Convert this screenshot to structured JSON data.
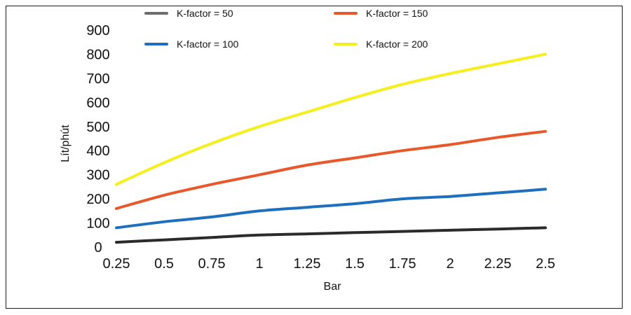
{
  "chart_data": {
    "type": "line",
    "title": "",
    "xlabel": "Bar",
    "ylabel": "Lít/phút",
    "x": [
      0.25,
      0.5,
      0.75,
      1,
      1.25,
      1.5,
      1.75,
      2,
      2.25,
      2.5
    ],
    "x_tick_labels": [
      "0.25",
      "0.5",
      "0.75",
      "1",
      "1.25",
      "1.5",
      "1.75",
      "2",
      "2.25",
      "2.5"
    ],
    "ylim": [
      0,
      900
    ],
    "y_ticks": [
      0,
      100,
      200,
      300,
      400,
      500,
      600,
      700,
      800,
      900
    ],
    "grid": false,
    "legend_position": "top",
    "series": [
      {
        "name": "K-factor = 50",
        "color": "#2b2b2b",
        "legend_color": "#6e6e6e",
        "values": [
          20,
          30,
          40,
          50,
          55,
          60,
          65,
          70,
          75,
          80
        ]
      },
      {
        "name": "K-factor = 100",
        "color": "#1f6fbf",
        "legend_color": "#1f6fbf",
        "values": [
          80,
          105,
          125,
          150,
          165,
          180,
          200,
          210,
          225,
          240
        ]
      },
      {
        "name": "K-factor = 150",
        "color": "#e8582a",
        "legend_color": "#e8582a",
        "values": [
          160,
          215,
          260,
          300,
          340,
          370,
          400,
          425,
          455,
          480
        ]
      },
      {
        "name": "K-factor = 200",
        "color": "#f5ef1e",
        "legend_color": "#f5ef1e",
        "values": [
          260,
          350,
          430,
          500,
          560,
          620,
          675,
          720,
          760,
          800
        ]
      }
    ]
  }
}
